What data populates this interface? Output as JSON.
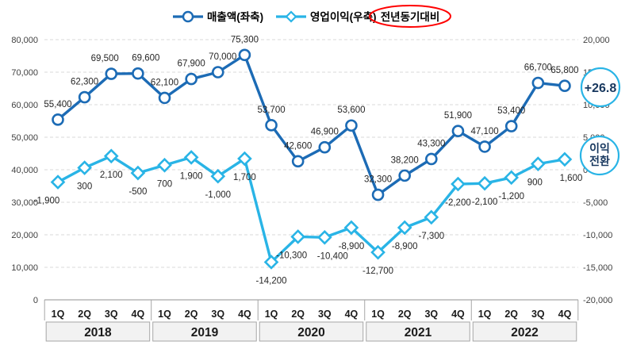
{
  "chart_data": {
    "type": "line",
    "title": "",
    "quarter_labels": [
      "1Q",
      "2Q",
      "3Q",
      "4Q"
    ],
    "year_groups": [
      "2018",
      "2019",
      "2020",
      "2021",
      "2022"
    ],
    "series": [
      {
        "name": "매출액(좌축)",
        "axis": "left",
        "marker": "circle",
        "color": "#1C6BB5",
        "values": [
          55400,
          62300,
          69500,
          69600,
          62100,
          67900,
          70000,
          75300,
          53700,
          42600,
          46900,
          53600,
          32300,
          38200,
          43300,
          51900,
          47100,
          53400,
          66700,
          65800
        ]
      },
      {
        "name": "영업이익(우축)",
        "axis": "right",
        "marker": "diamond",
        "color": "#29B4E6",
        "values": [
          -1900,
          300,
          2100,
          -500,
          700,
          1900,
          -1000,
          1700,
          -14200,
          -10300,
          -10400,
          -8900,
          -12700,
          -8900,
          -7300,
          -2200,
          -2100,
          -1200,
          900,
          1600
        ]
      }
    ],
    "left_axis": {
      "min": 0,
      "max": 80000,
      "step": 10000
    },
    "right_axis": {
      "min": -20000,
      "max": 20000,
      "step": 5000
    },
    "legend_position": "top",
    "grid": "horizontal-dashed",
    "annotations": {
      "legend_callout": {
        "text": "전년동기대비",
        "shape": "ellipse",
        "stroke": "#FF0000"
      },
      "yoy_badge": {
        "text": "+26.8",
        "shape": "circle",
        "stroke": "#29B4E6",
        "text_color": "#17375E"
      },
      "turnaround_badge": {
        "text_lines": [
          "이익",
          "전환"
        ],
        "shape": "circle",
        "stroke": "#29B4E6",
        "text_color": "#17375E"
      }
    },
    "label_offsets": {
      "s0": {
        "2": -8,
        "3": 10,
        "6": 6
      },
      "s1": {
        "0": -14,
        "9": -8,
        "10": 10,
        "18": -4,
        "19": 8
      }
    },
    "colors": {
      "grid": "#D9D9D9",
      "axis_line": "#A6A6A6",
      "tick_text": "#404040",
      "data_label": "#262626",
      "year_box_fill": "#F2F2F2",
      "year_box_border": "#A6A6A6"
    }
  }
}
